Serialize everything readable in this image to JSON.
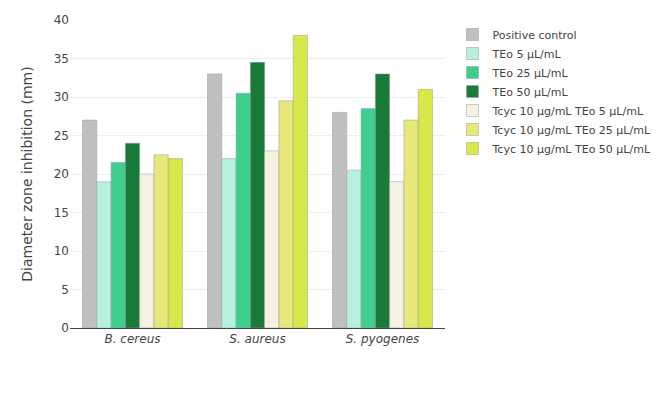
{
  "chart_data": {
    "type": "bar",
    "categories": [
      "B. cereus",
      "S. aureus",
      "S. pyogenes"
    ],
    "series": [
      {
        "name": "Positive control",
        "color": "#c0c0c0",
        "values": [
          27,
          33,
          28
        ]
      },
      {
        "name": "TEo 5 μL/mL",
        "color": "#b8f0df",
        "values": [
          19,
          22,
          20.5
        ]
      },
      {
        "name": "TEo 25 μL/mL",
        "color": "#3ecf8e",
        "values": [
          21.5,
          30.5,
          28.5
        ]
      },
      {
        "name": "TEo 50 μL/mL",
        "color": "#1a7a3a",
        "values": [
          24,
          34.5,
          33
        ]
      },
      {
        "name": "Tcyc 10 μg/mL TEo 5 μL/mL",
        "color": "#f5f2e4",
        "values": [
          20,
          23,
          19
        ]
      },
      {
        "name": "Tcyc 10 μg/mL TEo 25 μL/mL",
        "color": "#e8e87a",
        "values": [
          22.5,
          29.5,
          27
        ]
      },
      {
        "name": "Tcyc 10 μg/mL TEo 50 μL/mL",
        "color": "#d6e84a",
        "values": [
          22,
          38,
          31
        ]
      }
    ],
    "ylabel": "Diameter zone inhibition (mm)",
    "ylim": [
      0,
      40
    ],
    "yticks": [
      0,
      5,
      10,
      15,
      20,
      25,
      30,
      35,
      40
    ],
    "grid": true,
    "legend": "right"
  }
}
